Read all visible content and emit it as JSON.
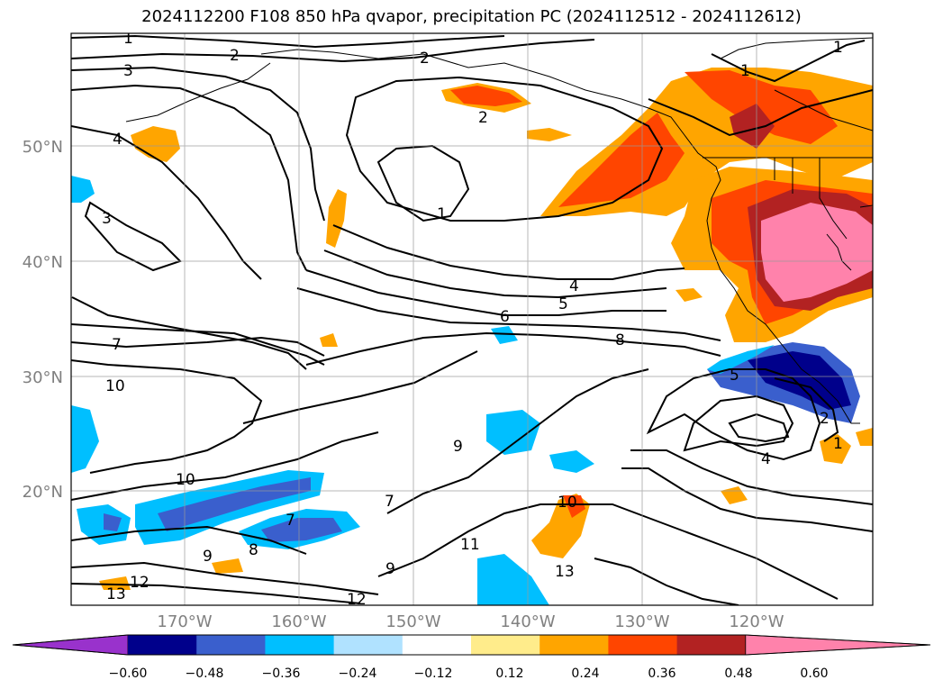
{
  "title": "2024112200 F108 850 hPa qvapor, precipitation PC (2024112512 - 2024112612)",
  "map": {
    "lat_labels": [
      "50°N",
      "40°N",
      "30°N",
      "20°N"
    ],
    "lon_labels": [
      "170°W",
      "160°W",
      "150°W",
      "140°W",
      "130°W",
      "120°W"
    ],
    "label_color": "#808080"
  },
  "contour_labels": [
    "1",
    "2",
    "2",
    "3",
    "4",
    "3",
    "2",
    "1",
    "4",
    "5",
    "6",
    "7",
    "8",
    "10",
    "10",
    "9",
    "9",
    "8",
    "7",
    "7",
    "10",
    "11",
    "9",
    "12",
    "12",
    "13",
    "13",
    "5",
    "2",
    "1",
    "4",
    "1",
    "1"
  ],
  "colorbar": {
    "ticks": [
      "−0.60",
      "−0.48",
      "−0.36",
      "−0.24",
      "−0.12",
      "0.12",
      "0.24",
      "0.36",
      "0.48",
      "0.60"
    ],
    "colors": [
      "#9932cc",
      "#00008b",
      "#3a5fcd",
      "#00bfff",
      "#b0e2ff",
      "#ffffff",
      "#ffec8b",
      "#ffa500",
      "#ff4500",
      "#b22222",
      "#ff82ab"
    ]
  }
}
